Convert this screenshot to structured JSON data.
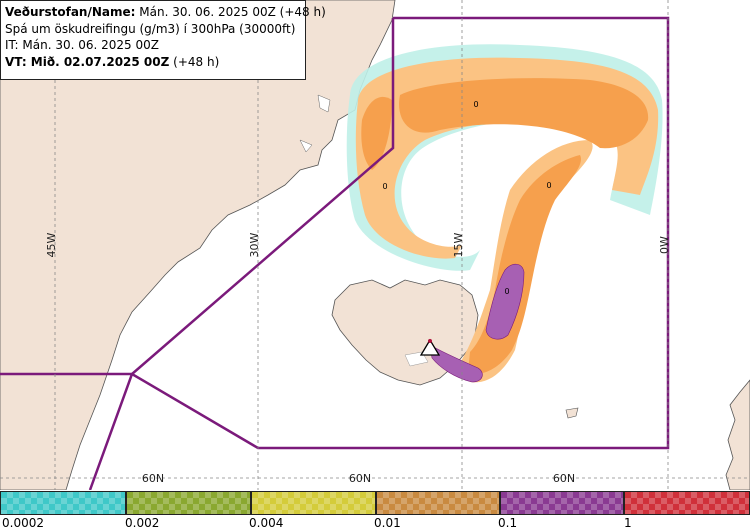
{
  "info": {
    "line1_label": "Veðurstofan/Name:",
    "line1_value": "Mán. 30. 06. 2025 00Z (+48 h)",
    "line2": "Spá um öskudreifingu (g/m3) í 300hPa (30000ft)",
    "line3": "IT: Mán. 30. 06. 2025 00Z",
    "line4_label": "VT: Mið. 02.07.2025 00Z",
    "line4_value": "(+48 h)"
  },
  "map": {
    "meridian_labels": [
      "45W",
      "30W",
      "15W",
      "0W"
    ],
    "parallel_labels": [
      "60N",
      "60N",
      "60N"
    ],
    "contour_labels": [
      "0",
      "0",
      "0",
      "0"
    ],
    "colors": {
      "land": "#f2e2d5",
      "sea": "#ffffff",
      "fir_boundary": "#7b1a7b",
      "ash_low": "#fbc383",
      "ash_mid": "#f6a04d",
      "ash_high": "#a760b3",
      "ash_trace": "#7fe3e3"
    },
    "volcano_icon": "warning-triangle-icon"
  },
  "legend": {
    "colors": [
      "#3fc8c8",
      "#8aa830",
      "#d4cc3a",
      "#c98a40",
      "#8a3a92",
      "#d0303a"
    ],
    "labels": [
      "0.0002",
      "0.002",
      "0.004",
      "0.01",
      "0.1",
      "1"
    ]
  }
}
